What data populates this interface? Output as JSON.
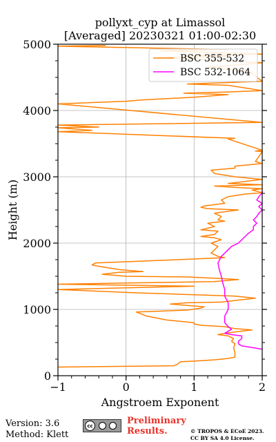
{
  "chart_data": {
    "type": "line",
    "title": "pollyxt_cyp at Limassol",
    "subtitle": "[Averaged] 20230321 01:00-02:30",
    "xlabel": "Angstroem Exponent",
    "ylabel": "Height (m)",
    "xlim": [
      -1,
      2
    ],
    "ylim": [
      0,
      5000
    ],
    "xticks": [
      "−1",
      "0",
      "1",
      "2"
    ],
    "yticks": [
      "0",
      "1000",
      "2000",
      "3000",
      "4000",
      "5000"
    ],
    "grid": true,
    "legend_position": "top-right",
    "series": [
      {
        "name": "BSC 355-532",
        "color": "#ff8000",
        "points": [
          [
            -1,
            130
          ],
          [
            0.7,
            150
          ],
          [
            0.75,
            170
          ],
          [
            0.8,
            210
          ],
          [
            1.0,
            220
          ],
          [
            1.3,
            240
          ],
          [
            1.5,
            260
          ],
          [
            1.6,
            280
          ],
          [
            1.6,
            350
          ],
          [
            1.58,
            420
          ],
          [
            1.6,
            480
          ],
          [
            1.55,
            520
          ],
          [
            1.58,
            560
          ],
          [
            1.5,
            600
          ],
          [
            1.35,
            620
          ],
          [
            1.45,
            640
          ],
          [
            1.6,
            660
          ],
          [
            1.85,
            690
          ],
          [
            1.6,
            710
          ],
          [
            1.45,
            740
          ],
          [
            1.1,
            760
          ],
          [
            1.0,
            780
          ],
          [
            1.0,
            800
          ],
          [
            0.6,
            840
          ],
          [
            0.3,
            900
          ],
          [
            0.15,
            960
          ],
          [
            0.4,
            970
          ],
          [
            0.9,
            990
          ],
          [
            1.1,
            1020
          ],
          [
            1.15,
            1040
          ],
          [
            0.9,
            1060
          ],
          [
            0.65,
            1080
          ],
          [
            0.9,
            1100
          ],
          [
            1.4,
            1110
          ],
          [
            1.9,
            1170
          ],
          [
            1.6,
            1200
          ],
          [
            1.3,
            1210
          ],
          [
            0.15,
            1250
          ],
          [
            -1,
            1300
          ],
          [
            1.0,
            1350
          ],
          [
            -1,
            1380
          ],
          [
            1.3,
            1420
          ],
          [
            1.65,
            1450
          ],
          [
            1.3,
            1470
          ],
          [
            0.9,
            1490
          ],
          [
            0.0,
            1500
          ],
          [
            -0.35,
            1530
          ],
          [
            -0.1,
            1560
          ],
          [
            0.25,
            1570
          ],
          [
            -0.1,
            1600
          ],
          [
            -0.4,
            1650
          ],
          [
            -0.5,
            1670
          ],
          [
            -0.45,
            1700
          ],
          [
            1.0,
            1760
          ],
          [
            1.45,
            1780
          ],
          [
            1.35,
            1800
          ],
          [
            1.25,
            1850
          ],
          [
            1.3,
            1900
          ],
          [
            1.35,
            1950
          ],
          [
            1.25,
            2000
          ],
          [
            1.4,
            2050
          ],
          [
            1.3,
            2080
          ],
          [
            1.1,
            2100
          ],
          [
            1.3,
            2130
          ],
          [
            1.35,
            2180
          ],
          [
            1.1,
            2200
          ],
          [
            1.3,
            2250
          ],
          [
            1.2,
            2300
          ],
          [
            1.45,
            2330
          ],
          [
            1.35,
            2350
          ],
          [
            1.4,
            2400
          ],
          [
            1.3,
            2450
          ],
          [
            1.5,
            2480
          ],
          [
            1.65,
            2500
          ],
          [
            1.2,
            2520
          ],
          [
            1.1,
            2540
          ],
          [
            1.15,
            2560
          ],
          [
            1.45,
            2600
          ],
          [
            1.4,
            2650
          ],
          [
            1.5,
            2700
          ],
          [
            1.75,
            2740
          ],
          [
            2.0,
            2760
          ],
          [
            1.85,
            2800
          ],
          [
            2.0,
            2820
          ],
          [
            1.6,
            2840
          ],
          [
            1.3,
            2860
          ],
          [
            2.0,
            2880
          ],
          [
            1.5,
            2900
          ],
          [
            2.0,
            2960
          ],
          [
            1.6,
            3000
          ],
          [
            1.3,
            3050
          ],
          [
            1.25,
            3100
          ],
          [
            1.6,
            3130
          ],
          [
            1.6,
            3160
          ],
          [
            2.0,
            3200
          ],
          [
            1.9,
            3230
          ],
          [
            2.0,
            3380
          ],
          [
            1.9,
            3390
          ],
          [
            2.0,
            3400
          ],
          [
            1.5,
            3570
          ],
          [
            1.6,
            3580
          ],
          [
            -1,
            3680
          ],
          [
            -0.5,
            3700
          ],
          [
            -1,
            3740
          ],
          [
            -0.4,
            3750
          ],
          [
            -1,
            3780
          ],
          [
            2.0,
            3820
          ],
          [
            -1,
            4100
          ],
          [
            0.0,
            4140
          ],
          [
            0.25,
            4160
          ],
          [
            1.0,
            4200
          ],
          [
            1.5,
            4240
          ],
          [
            0.85,
            4260
          ],
          [
            1.5,
            4280
          ],
          [
            2.0,
            4300
          ],
          [
            1.5,
            4380
          ],
          [
            0.9,
            4400
          ],
          [
            2.0,
            4440
          ],
          [
            1.8,
            4600
          ],
          [
            1.2,
            4650
          ],
          [
            2.0,
            4720
          ],
          [
            0.5,
            4800
          ],
          [
            1.5,
            4820
          ],
          [
            0.95,
            4830
          ],
          [
            2.0,
            4850
          ],
          [
            0.5,
            4900
          ],
          [
            1.5,
            4920
          ],
          [
            -1,
            4970
          ],
          [
            -0.3,
            4980
          ]
        ]
      },
      {
        "name": "BSC 532-1064",
        "color": "#ff00ff",
        "points": [
          [
            2.0,
            400
          ],
          [
            1.7,
            450
          ],
          [
            1.65,
            480
          ],
          [
            1.65,
            520
          ],
          [
            1.7,
            560
          ],
          [
            1.7,
            600
          ],
          [
            1.55,
            620
          ],
          [
            1.45,
            640
          ],
          [
            1.5,
            670
          ],
          [
            1.55,
            700
          ],
          [
            1.5,
            740
          ],
          [
            1.45,
            800
          ],
          [
            1.45,
            900
          ],
          [
            1.5,
            1000
          ],
          [
            1.5,
            1100
          ],
          [
            1.45,
            1200
          ],
          [
            1.45,
            1300
          ],
          [
            1.42,
            1400
          ],
          [
            1.4,
            1500
          ],
          [
            1.37,
            1600
          ],
          [
            1.35,
            1700
          ],
          [
            1.4,
            1800
          ],
          [
            1.5,
            1900
          ],
          [
            1.55,
            1950
          ],
          [
            1.65,
            2000
          ],
          [
            1.7,
            2050
          ],
          [
            1.75,
            2100
          ],
          [
            1.8,
            2150
          ],
          [
            1.87,
            2200
          ],
          [
            1.87,
            2250
          ],
          [
            1.92,
            2300
          ],
          [
            1.87,
            2350
          ],
          [
            1.92,
            2400
          ],
          [
            1.95,
            2450
          ],
          [
            2.0,
            2500
          ],
          [
            1.95,
            2550
          ],
          [
            2.0,
            2600
          ],
          [
            1.92,
            2650
          ],
          [
            1.95,
            2700
          ],
          [
            2.0,
            2760
          ],
          [
            2.0,
            2790
          ]
        ]
      }
    ]
  },
  "footer": {
    "version": "Version: 3.6",
    "method": "Method: Klett",
    "preliminary_line1": "Preliminary",
    "preliminary_line2": "Results.",
    "copyright_line1": "© TROPOS & ECoE 2023.",
    "copyright_line2": "CC BY SA 4.0 License.",
    "license_badge_text": "cc"
  }
}
